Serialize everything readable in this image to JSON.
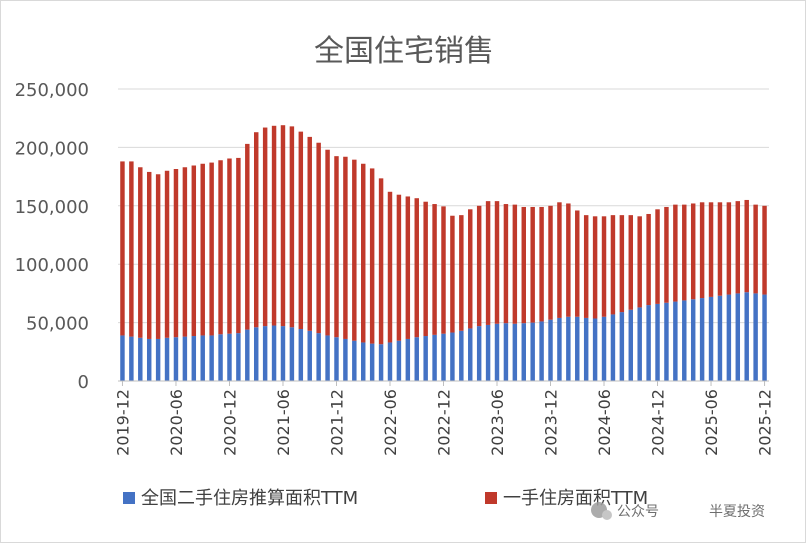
{
  "chart_data": {
    "type": "bar",
    "stacked": true,
    "title": "全国住宅销售",
    "xlabel": "",
    "ylabel": "",
    "ylim": [
      0,
      250000
    ],
    "y_ticks": [
      "0",
      "50,000",
      "100,000",
      "150,000",
      "200,000",
      "250,000"
    ],
    "x_tick_labels": [
      "2019-12",
      "2020-06",
      "2020-12",
      "2021-06",
      "2021-12",
      "2022-06",
      "2022-12",
      "2023-06",
      "2023-12",
      "2024-06",
      "2024-12",
      "2025-06",
      "2025-12"
    ],
    "categories": [
      "2019-12",
      "2020-01",
      "2020-02",
      "2020-03",
      "2020-04",
      "2020-05",
      "2020-06",
      "2020-07",
      "2020-08",
      "2020-09",
      "2020-10",
      "2020-11",
      "2020-12",
      "2021-01",
      "2021-02",
      "2021-03",
      "2021-04",
      "2021-05",
      "2021-06",
      "2021-07",
      "2021-08",
      "2021-09",
      "2021-10",
      "2021-11",
      "2021-12",
      "2022-01",
      "2022-02",
      "2022-03",
      "2022-04",
      "2022-05",
      "2022-06",
      "2022-07",
      "2022-08",
      "2022-09",
      "2022-10",
      "2022-11",
      "2022-12",
      "2023-01",
      "2023-02",
      "2023-03",
      "2023-04",
      "2023-05",
      "2023-06",
      "2023-07",
      "2023-08",
      "2023-09",
      "2023-10",
      "2023-11",
      "2023-12",
      "2024-01",
      "2024-02",
      "2024-03",
      "2024-04",
      "2024-05",
      "2024-06",
      "2024-07",
      "2024-08",
      "2024-09",
      "2024-10",
      "2024-11",
      "2024-12",
      "2025-01",
      "2025-02",
      "2025-03",
      "2025-04",
      "2025-05",
      "2025-06",
      "2025-07",
      "2025-08",
      "2025-09",
      "2025-10",
      "2025-11",
      "2025-12"
    ],
    "series": [
      {
        "name": "全国二手住房推算面积TTM",
        "color": "#4472c4",
        "values": [
          39000,
          38000,
          37000,
          36000,
          36000,
          37000,
          37500,
          38000,
          38500,
          39000,
          39000,
          40000,
          40500,
          41000,
          44000,
          46000,
          47000,
          47500,
          47000,
          46000,
          44500,
          43000,
          41000,
          39000,
          37500,
          36000,
          34500,
          33000,
          32000,
          31500,
          33000,
          34500,
          36000,
          37500,
          38500,
          39500,
          40500,
          41500,
          43000,
          45000,
          47000,
          48000,
          49000,
          49500,
          49000,
          49500,
          50000,
          51000,
          52500,
          54000,
          55000,
          55000,
          54000,
          53500,
          55000,
          57000,
          59000,
          61000,
          63000,
          65000,
          66000,
          67000,
          68000,
          69000,
          70000,
          71000,
          72000,
          73000,
          74000,
          75000,
          76000,
          75000,
          74000
        ]
      },
      {
        "name": "一手住房面积TTM",
        "color": "#c0392b",
        "values": [
          149000,
          150000,
          146000,
          143000,
          141000,
          143000,
          144000,
          145000,
          146000,
          147000,
          148000,
          149000,
          150000,
          150000,
          159000,
          167000,
          170000,
          171000,
          172000,
          172000,
          169000,
          166000,
          163000,
          159000,
          155000,
          156000,
          155000,
          153000,
          150000,
          142000,
          129000,
          125000,
          122000,
          119000,
          115000,
          112000,
          109000,
          100000,
          99000,
          102000,
          103000,
          106000,
          105000,
          102000,
          102000,
          99500,
          99000,
          98000,
          97500,
          99000,
          97000,
          91000,
          88000,
          87500,
          86000,
          85000,
          83000,
          81000,
          78000,
          78000,
          81000,
          82000,
          83000,
          82000,
          82000,
          82000,
          81000,
          80000,
          79000,
          79000,
          79000,
          76000,
          76000
        ]
      }
    ],
    "legend_position": "bottom",
    "grid": true
  },
  "watermark": {
    "text_1": "公众号",
    "text_2": "半夏投资"
  }
}
